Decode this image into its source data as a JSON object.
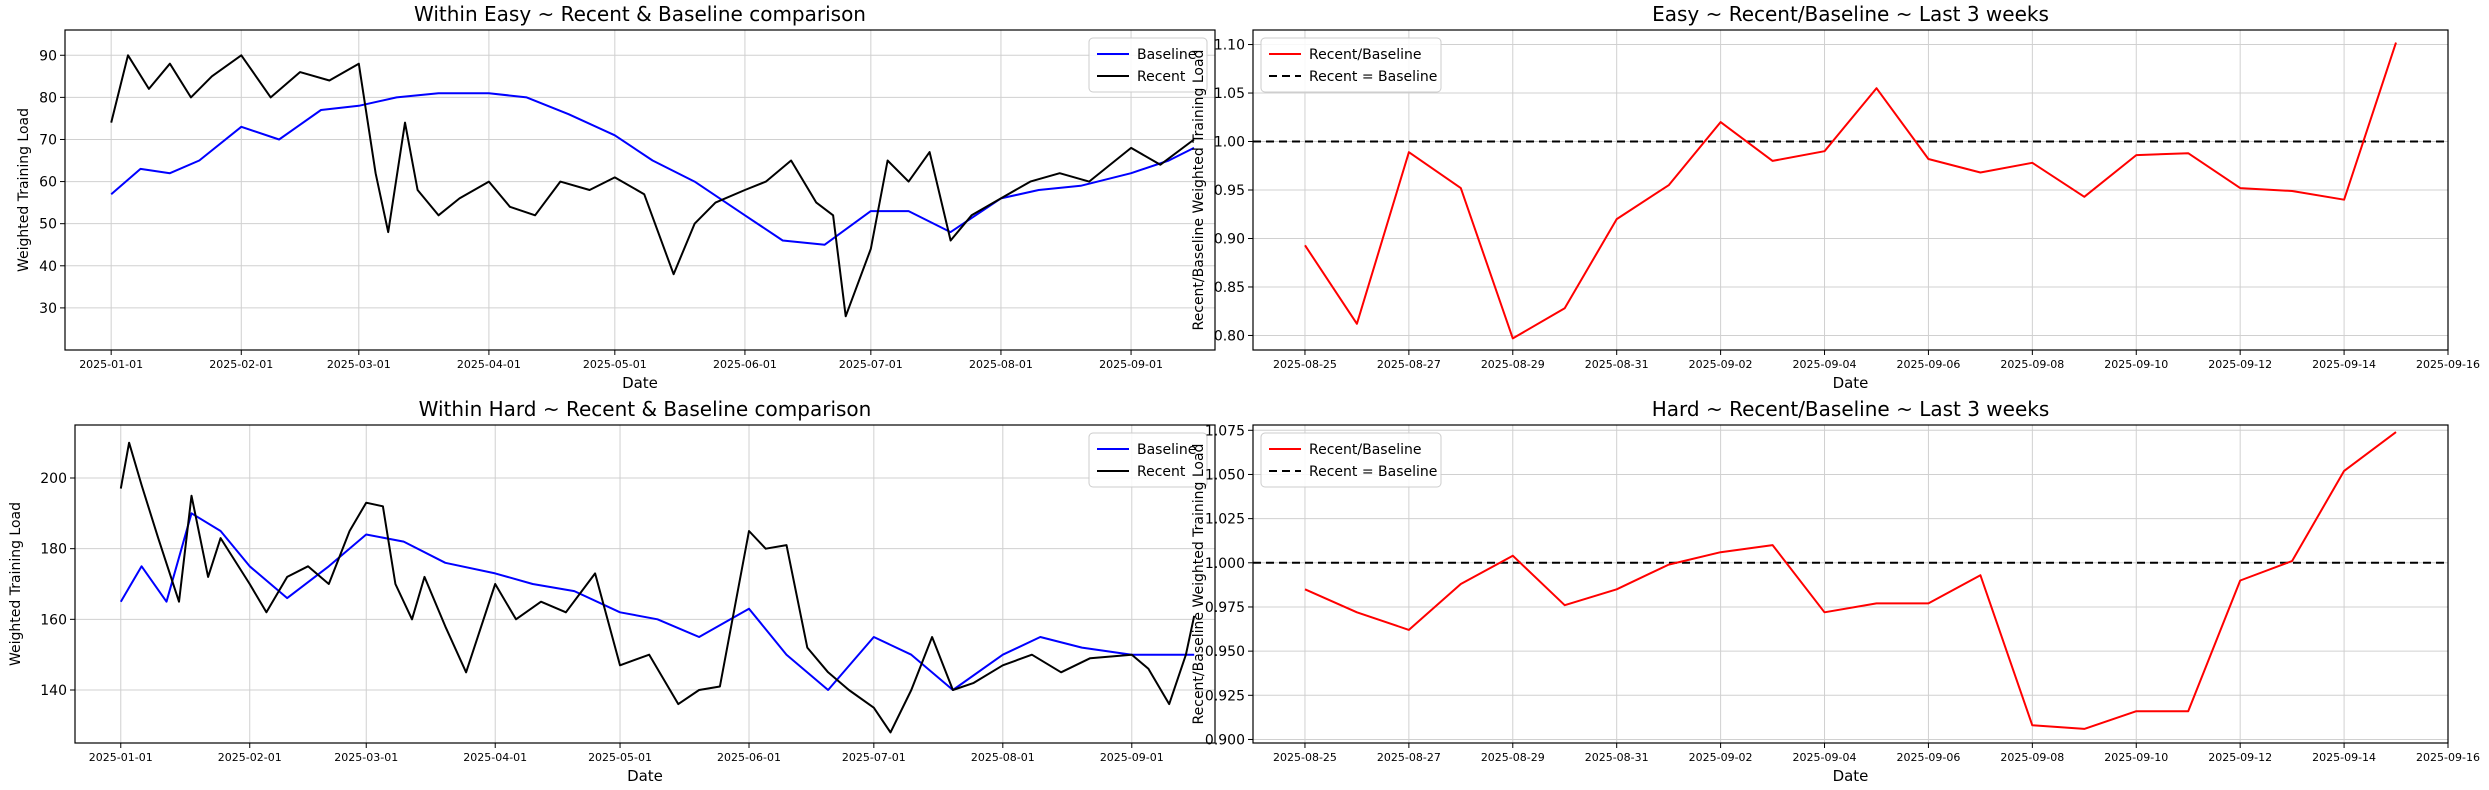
{
  "figure": {
    "background": "#ffffff"
  },
  "chart_data": [
    {
      "id": "easy-compare",
      "type": "line",
      "title": "Within Easy ~ Recent & Baseline comparison",
      "xlabel": "Date",
      "ylabel": "Weighted Training Load",
      "x_type": "date",
      "xlim": [
        "2024-12-21",
        "2025-09-21"
      ],
      "ylim": [
        20,
        96
      ],
      "xticks": [
        "2025-01-01",
        "2025-02-01",
        "2025-03-01",
        "2025-04-01",
        "2025-05-01",
        "2025-06-01",
        "2025-07-01",
        "2025-08-01",
        "2025-09-01"
      ],
      "yticks": [
        30,
        40,
        50,
        60,
        70,
        80,
        90
      ],
      "grid": true,
      "legend_loc": "upper right",
      "series": [
        {
          "name": "Baseline",
          "color": "#0000ff",
          "x": [
            "2025-01-01",
            "2025-01-08",
            "2025-01-15",
            "2025-01-22",
            "2025-02-01",
            "2025-02-10",
            "2025-02-20",
            "2025-03-01",
            "2025-03-10",
            "2025-03-20",
            "2025-04-01",
            "2025-04-10",
            "2025-04-20",
            "2025-05-01",
            "2025-05-10",
            "2025-05-20",
            "2025-06-01",
            "2025-06-10",
            "2025-06-20",
            "2025-07-01",
            "2025-07-10",
            "2025-07-20",
            "2025-08-01",
            "2025-08-10",
            "2025-08-20",
            "2025-09-01",
            "2025-09-10",
            "2025-09-16"
          ],
          "values": [
            57,
            63,
            62,
            65,
            73,
            70,
            77,
            78,
            80,
            81,
            81,
            80,
            76,
            71,
            65,
            60,
            52,
            46,
            45,
            53,
            53,
            48,
            56,
            58,
            59,
            62,
            65,
            68
          ]
        },
        {
          "name": "Recent",
          "color": "#000000",
          "x": [
            "2025-01-01",
            "2025-01-05",
            "2025-01-10",
            "2025-01-15",
            "2025-01-20",
            "2025-01-25",
            "2025-02-01",
            "2025-02-08",
            "2025-02-15",
            "2025-02-22",
            "2025-03-01",
            "2025-03-05",
            "2025-03-08",
            "2025-03-12",
            "2025-03-15",
            "2025-03-20",
            "2025-03-25",
            "2025-04-01",
            "2025-04-06",
            "2025-04-12",
            "2025-04-18",
            "2025-04-25",
            "2025-05-01",
            "2025-05-08",
            "2025-05-15",
            "2025-05-20",
            "2025-05-25",
            "2025-06-01",
            "2025-06-06",
            "2025-06-12",
            "2025-06-18",
            "2025-06-22",
            "2025-06-25",
            "2025-07-01",
            "2025-07-05",
            "2025-07-10",
            "2025-07-15",
            "2025-07-20",
            "2025-07-25",
            "2025-08-01",
            "2025-08-08",
            "2025-08-15",
            "2025-08-22",
            "2025-09-01",
            "2025-09-08",
            "2025-09-16"
          ],
          "values": [
            74,
            90,
            82,
            88,
            80,
            85,
            90,
            80,
            86,
            84,
            88,
            62,
            48,
            74,
            58,
            52,
            56,
            60,
            54,
            52,
            60,
            58,
            61,
            57,
            38,
            50,
            55,
            58,
            60,
            65,
            55,
            52,
            28,
            44,
            65,
            60,
            67,
            46,
            52,
            56,
            60,
            62,
            60,
            68,
            64,
            70
          ]
        }
      ]
    },
    {
      "id": "easy-ratio",
      "type": "line",
      "title": "Easy ~ Recent/Baseline ~ Last 3 weeks",
      "xlabel": "Date",
      "ylabel": "Recent/Baseline Weighted Training Load",
      "x_type": "date",
      "xlim": [
        "2025-08-24",
        "2025-09-16"
      ],
      "ylim": [
        0.785,
        1.115
      ],
      "xticks": [
        "2025-08-25",
        "2025-08-27",
        "2025-08-29",
        "2025-08-31",
        "2025-09-02",
        "2025-09-04",
        "2025-09-06",
        "2025-09-08",
        "2025-09-10",
        "2025-09-12",
        "2025-09-14",
        "2025-09-16"
      ],
      "ytick_labels": [
        "0.80",
        "0.85",
        "0.90",
        "0.95",
        "1.00",
        "1.05",
        "1.10"
      ],
      "grid": true,
      "legend_loc": "upper left",
      "reference_line": {
        "label": "Recent = Baseline",
        "value": 1.0,
        "color": "#000000"
      },
      "series": [
        {
          "name": "Recent/Baseline",
          "color": "#ff0000",
          "x": [
            "2025-08-25",
            "2025-08-26",
            "2025-08-27",
            "2025-08-28",
            "2025-08-29",
            "2025-08-30",
            "2025-08-31",
            "2025-09-01",
            "2025-09-02",
            "2025-09-03",
            "2025-09-04",
            "2025-09-05",
            "2025-09-06",
            "2025-09-07",
            "2025-09-08",
            "2025-09-09",
            "2025-09-10",
            "2025-09-11",
            "2025-09-12",
            "2025-09-13",
            "2025-09-14",
            "2025-09-15"
          ],
          "values": [
            0.893,
            0.812,
            0.989,
            0.952,
            0.797,
            0.828,
            0.92,
            0.955,
            1.02,
            0.98,
            0.99,
            1.055,
            0.982,
            0.968,
            0.978,
            0.943,
            0.986,
            0.988,
            0.952,
            0.949,
            0.94,
            1.102
          ]
        }
      ]
    },
    {
      "id": "hard-compare",
      "type": "line",
      "title": "Within Hard ~ Recent & Baseline comparison",
      "xlabel": "Date",
      "ylabel": "Weighted Training Load",
      "x_type": "date",
      "xlim": [
        "2024-12-21",
        "2025-09-21"
      ],
      "ylim": [
        125,
        215
      ],
      "xticks": [
        "2025-01-01",
        "2025-02-01",
        "2025-03-01",
        "2025-04-01",
        "2025-05-01",
        "2025-06-01",
        "2025-07-01",
        "2025-08-01",
        "2025-09-01"
      ],
      "yticks": [
        140,
        160,
        180,
        200
      ],
      "grid": true,
      "legend_loc": "upper right",
      "series": [
        {
          "name": "Baseline",
          "color": "#0000ff",
          "x": [
            "2025-01-01",
            "2025-01-06",
            "2025-01-12",
            "2025-01-18",
            "2025-01-25",
            "2025-02-01",
            "2025-02-10",
            "2025-02-20",
            "2025-03-01",
            "2025-03-10",
            "2025-03-20",
            "2025-04-01",
            "2025-04-10",
            "2025-04-20",
            "2025-05-01",
            "2025-05-10",
            "2025-05-20",
            "2025-06-01",
            "2025-06-10",
            "2025-06-20",
            "2025-07-01",
            "2025-07-10",
            "2025-07-20",
            "2025-08-01",
            "2025-08-10",
            "2025-08-20",
            "2025-09-01",
            "2025-09-10",
            "2025-09-16"
          ],
          "values": [
            165,
            175,
            165,
            190,
            185,
            175,
            166,
            175,
            184,
            182,
            176,
            173,
            170,
            168,
            162,
            160,
            155,
            163,
            150,
            140,
            155,
            150,
            140,
            150,
            155,
            152,
            150,
            150,
            150
          ]
        },
        {
          "name": "Recent",
          "color": "#000000",
          "x": [
            "2025-01-01",
            "2025-01-03",
            "2025-01-06",
            "2025-01-10",
            "2025-01-15",
            "2025-01-18",
            "2025-01-22",
            "2025-01-25",
            "2025-02-01",
            "2025-02-05",
            "2025-02-10",
            "2025-02-15",
            "2025-02-20",
            "2025-02-25",
            "2025-03-01",
            "2025-03-05",
            "2025-03-08",
            "2025-03-12",
            "2025-03-15",
            "2025-03-20",
            "2025-03-25",
            "2025-04-01",
            "2025-04-06",
            "2025-04-12",
            "2025-04-18",
            "2025-04-25",
            "2025-05-01",
            "2025-05-08",
            "2025-05-15",
            "2025-05-20",
            "2025-05-25",
            "2025-06-01",
            "2025-06-05",
            "2025-06-10",
            "2025-06-15",
            "2025-06-20",
            "2025-06-25",
            "2025-07-01",
            "2025-07-05",
            "2025-07-10",
            "2025-07-15",
            "2025-07-20",
            "2025-07-25",
            "2025-08-01",
            "2025-08-08",
            "2025-08-15",
            "2025-08-22",
            "2025-09-01",
            "2025-09-05",
            "2025-09-10",
            "2025-09-14",
            "2025-09-16"
          ],
          "values": [
            197,
            210,
            198,
            183,
            165,
            195,
            172,
            183,
            170,
            162,
            172,
            175,
            170,
            185,
            193,
            192,
            170,
            160,
            172,
            158,
            145,
            170,
            160,
            165,
            162,
            173,
            147,
            150,
            136,
            140,
            141,
            185,
            180,
            181,
            152,
            145,
            140,
            135,
            128,
            140,
            155,
            140,
            142,
            147,
            150,
            145,
            149,
            150,
            146,
            136,
            150,
            161
          ]
        }
      ]
    },
    {
      "id": "hard-ratio",
      "type": "line",
      "title": "Hard ~ Recent/Baseline ~ Last 3 weeks",
      "xlabel": "Date",
      "ylabel": "Recent/Baseline Weighted Training Load",
      "x_type": "date",
      "xlim": [
        "2025-08-24",
        "2025-09-16"
      ],
      "ylim": [
        0.898,
        1.078
      ],
      "xticks": [
        "2025-08-25",
        "2025-08-27",
        "2025-08-29",
        "2025-08-31",
        "2025-09-02",
        "2025-09-04",
        "2025-09-06",
        "2025-09-08",
        "2025-09-10",
        "2025-09-12",
        "2025-09-14",
        "2025-09-16"
      ],
      "ytick_labels": [
        "0.900",
        "0.925",
        "0.950",
        "0.975",
        "1.000",
        "1.025",
        "1.050",
        "1.075"
      ],
      "grid": true,
      "legend_loc": "upper left",
      "reference_line": {
        "label": "Recent = Baseline",
        "value": 1.0,
        "color": "#000000"
      },
      "series": [
        {
          "name": "Recent/Baseline",
          "color": "#ff0000",
          "x": [
            "2025-08-25",
            "2025-08-26",
            "2025-08-27",
            "2025-08-28",
            "2025-08-29",
            "2025-08-30",
            "2025-08-31",
            "2025-09-01",
            "2025-09-02",
            "2025-09-03",
            "2025-09-04",
            "2025-09-05",
            "2025-09-06",
            "2025-09-07",
            "2025-09-08",
            "2025-09-09",
            "2025-09-10",
            "2025-09-11",
            "2025-09-12",
            "2025-09-13",
            "2025-09-14",
            "2025-09-15"
          ],
          "values": [
            0.985,
            0.972,
            0.962,
            0.988,
            1.004,
            0.976,
            0.985,
            0.999,
            1.006,
            1.01,
            0.972,
            0.977,
            0.977,
            0.993,
            0.908,
            0.906,
            0.916,
            0.916,
            0.99,
            1.001,
            1.052,
            1.074
          ]
        }
      ]
    }
  ]
}
